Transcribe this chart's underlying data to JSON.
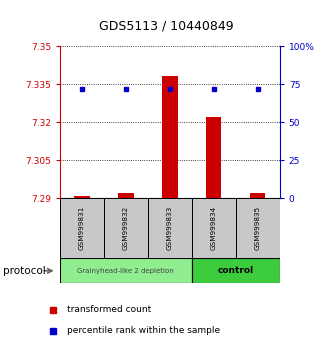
{
  "title": "GDS5113 / 10440849",
  "samples": [
    "GSM999831",
    "GSM999832",
    "GSM999833",
    "GSM999834",
    "GSM999835"
  ],
  "red_values": [
    7.291,
    7.292,
    7.338,
    7.322,
    7.292
  ],
  "blue_values": [
    7.333,
    7.333,
    7.333,
    7.333,
    7.333
  ],
  "y_min": 7.29,
  "y_max": 7.35,
  "y_ticks": [
    7.29,
    7.305,
    7.32,
    7.335,
    7.35
  ],
  "y_tick_labels": [
    "7.29",
    "7.305",
    "7.32",
    "7.335",
    "7.35"
  ],
  "y2_ticks": [
    0,
    25,
    50,
    75,
    100
  ],
  "y2_tick_labels": [
    "0",
    "25",
    "50",
    "75",
    "100%"
  ],
  "group1_label": "Grainyhead-like 2 depletion",
  "group2_label": "control",
  "group1_color": "#90EE90",
  "group2_color": "#3DCC3D",
  "protocol_label": "protocol",
  "legend_red": "transformed count",
  "legend_blue": "percentile rank within the sample",
  "bar_color": "#CC0000",
  "dot_color": "#0000CC",
  "tick_color_left": "#CC0000",
  "tick_color_right": "#0000CC",
  "sample_box_color": "#C8C8C8",
  "n_group1": 3,
  "n_group2": 2
}
